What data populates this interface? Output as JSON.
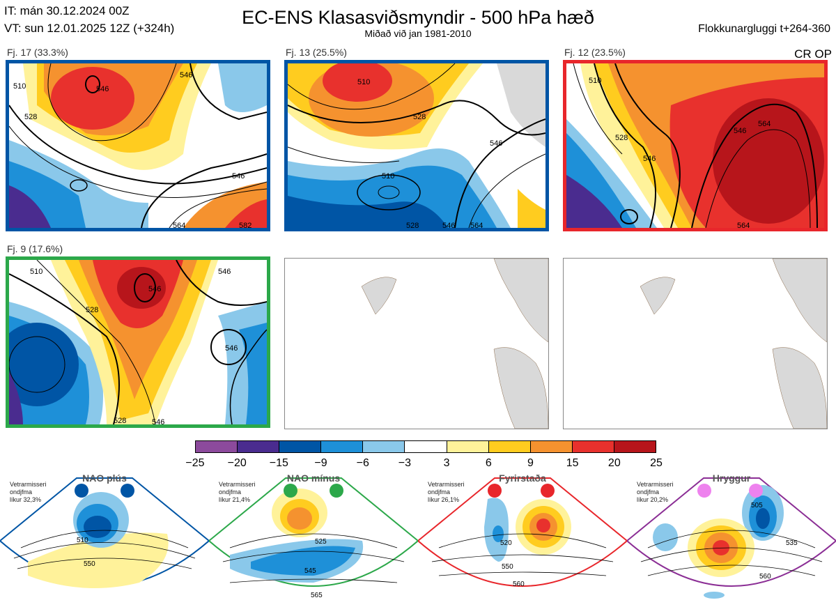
{
  "header": {
    "it_line": "IT: mán 30.12.2024 00Z",
    "vt_line": "VT: sun 12.01.2025 12Z  (+324h)",
    "title": "EC-ENS Klasasviðsmyndir - 500 hPa hæð",
    "subtitle": "Miðað við jan 1981-2010",
    "window": "Flokkunargluggi t+264-360"
  },
  "panels": [
    {
      "label": "Fj. 17 (33.3%)",
      "border_color": "#0055a5",
      "contours": [
        "510",
        "528",
        "546",
        "546",
        "546",
        "564",
        "582"
      ]
    },
    {
      "label": "Fj. 13 (25.5%)",
      "border_color": "#0055a5",
      "contours": [
        "510",
        "528",
        "546",
        "510",
        "528",
        "546",
        "564"
      ]
    },
    {
      "label": "Fj. 12 (23.5%)",
      "border_color": "#e8262b",
      "badge": "CR OP",
      "contours": [
        "510",
        "528",
        "546",
        "546",
        "564",
        "564"
      ]
    },
    {
      "label": "Fj. 9 (17.6%)",
      "border_color": "#2ca84a",
      "contours": [
        "510",
        "528",
        "546",
        "546",
        "528",
        "546",
        "546"
      ]
    }
  ],
  "colorbar": {
    "colors": [
      "#8c4a9c",
      "#4a2c8f",
      "#0055a5",
      "#1e90d8",
      "#8ac8ea",
      "#ffffff",
      "#fff29a",
      "#ffcc1f",
      "#f5922f",
      "#e8312d",
      "#b7151b"
    ],
    "ticks": [
      "−25",
      "−20",
      "−15",
      "−9",
      "−6",
      "−3",
      "3",
      "6",
      "9",
      "15",
      "20",
      "25"
    ]
  },
  "regimes": [
    {
      "name": "NAO plús",
      "info": [
        "Vetrarmisseri",
        "ondjfma",
        "líkur 32,3%"
      ],
      "color": "#0055a5",
      "contours": [
        "510",
        "550"
      ]
    },
    {
      "name": "NAO mínus",
      "info": [
        "Vetrarmisseri",
        "ondjfma",
        "líkur 21,4%"
      ],
      "color": "#2ca84a",
      "contours": [
        "525",
        "545",
        "565"
      ]
    },
    {
      "name": "Fyrirstaða",
      "info": [
        "Vetrarmisseri",
        "ondjfma",
        "líkur 26,1%"
      ],
      "color": "#e8262b",
      "contours": [
        "520",
        "550",
        "560"
      ]
    },
    {
      "name": "Hryggur",
      "info": [
        "Vetrarmisseri",
        "ondjfma",
        "líkur 20,2%"
      ],
      "color": "#8b2e95",
      "dot_color": "#ee82ee",
      "contours": [
        "505",
        "535",
        "560"
      ]
    }
  ]
}
